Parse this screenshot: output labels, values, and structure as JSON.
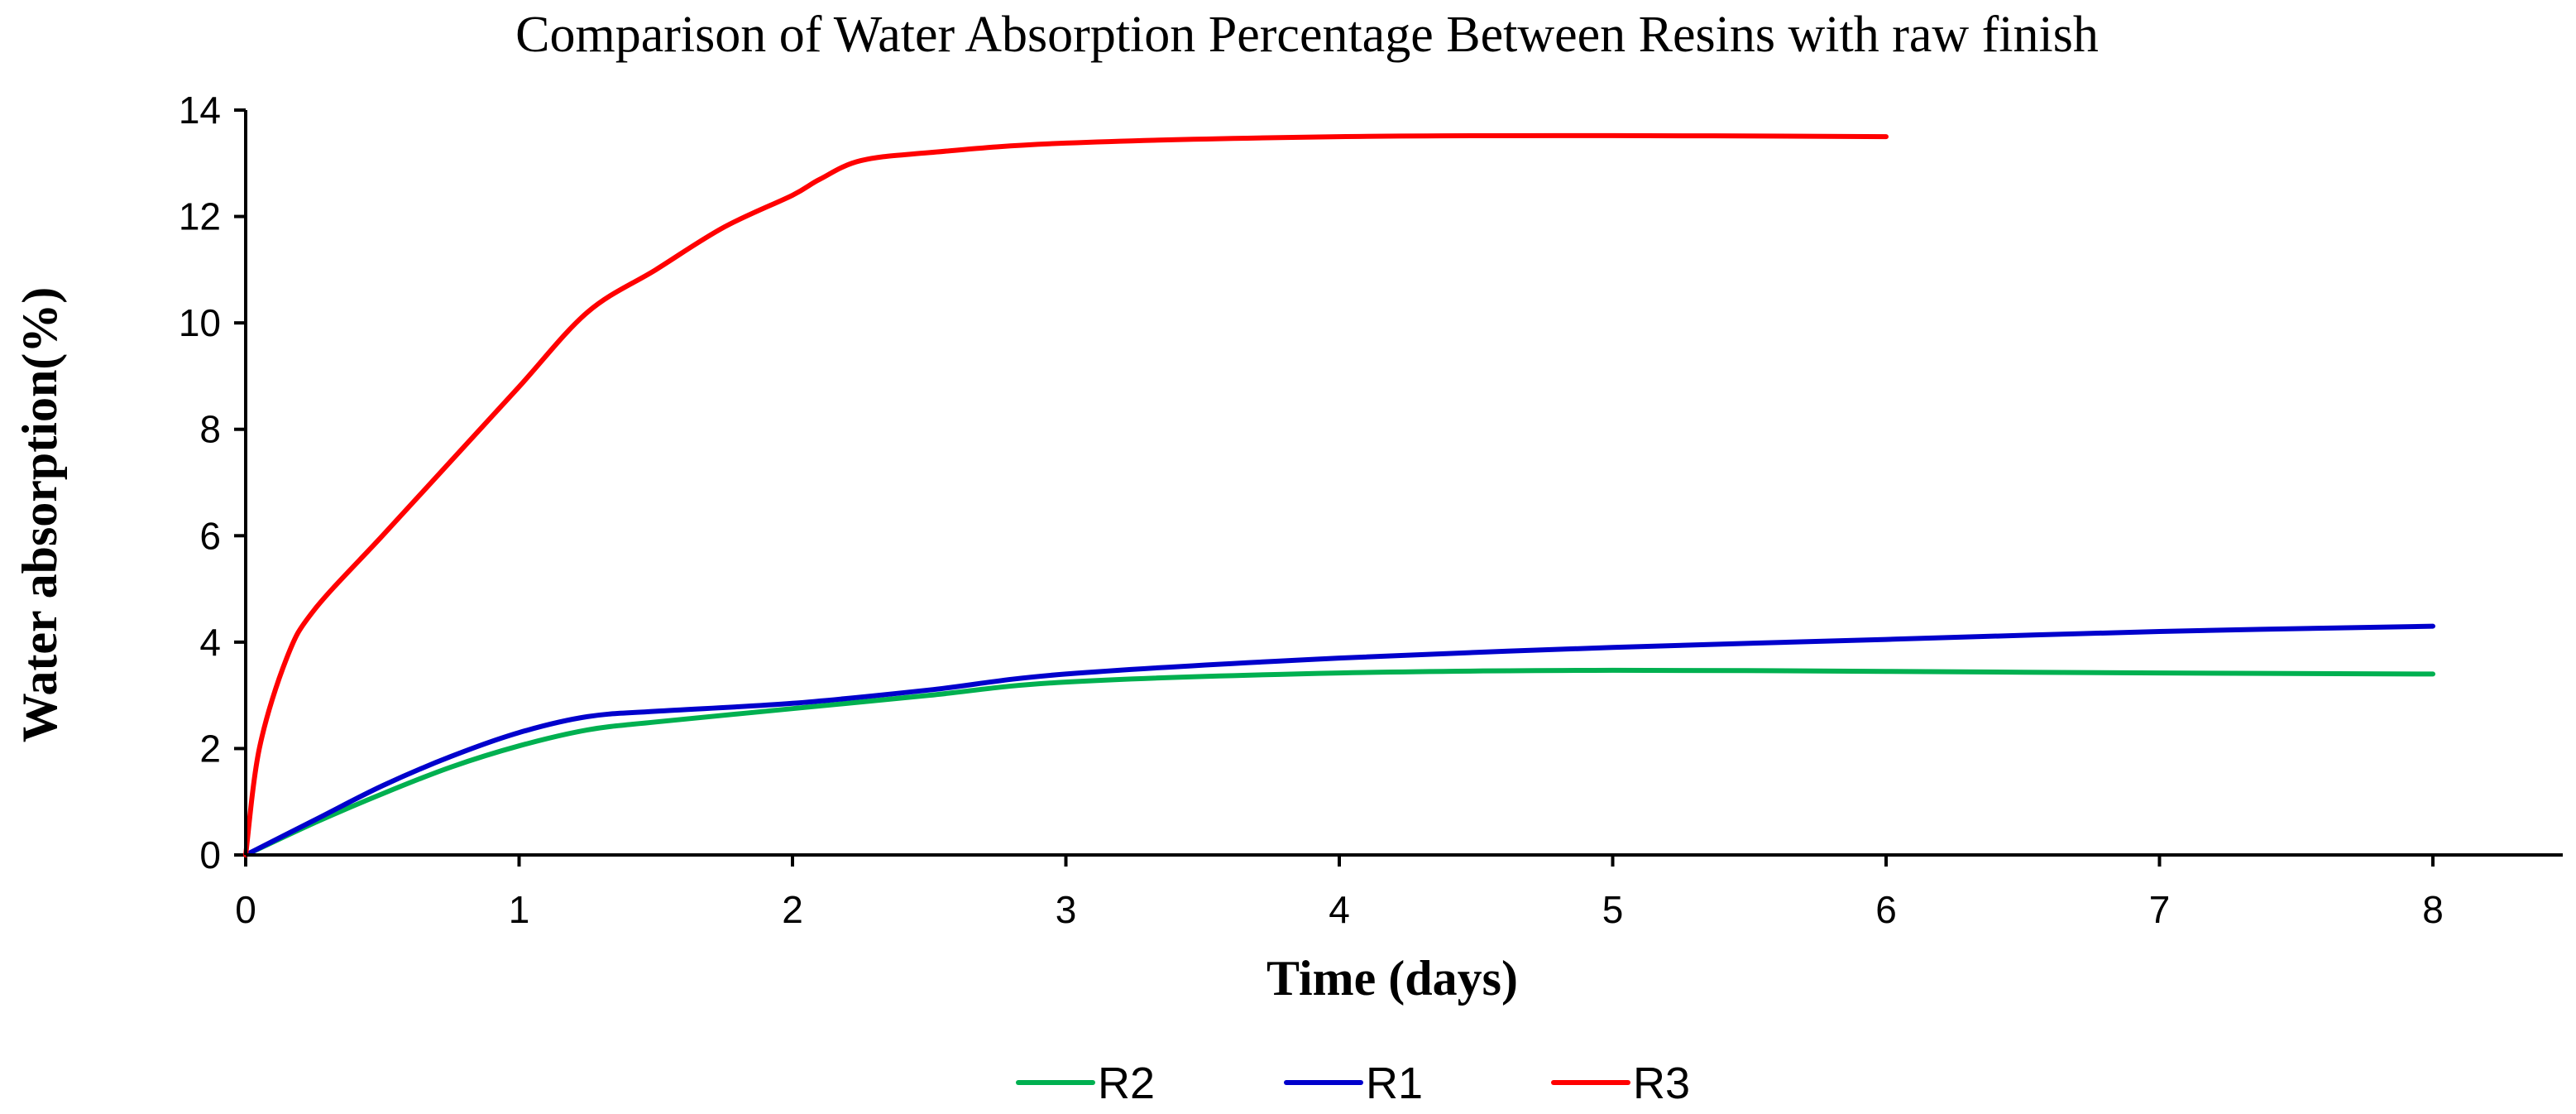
{
  "chart_data": {
    "type": "line",
    "title": "Comparison of Water Absorption Percentage Between Resins with raw finish",
    "xlabel": "Time (days)",
    "ylabel": "Water absorption(%)",
    "xlim": [
      0,
      8.5
    ],
    "ylim": [
      0,
      14
    ],
    "xticks": [
      0,
      1,
      2,
      3,
      4,
      5,
      6,
      7,
      8
    ],
    "yticks": [
      0,
      2,
      4,
      6,
      8,
      10,
      12,
      14
    ],
    "xtick_labels": [
      "0",
      "1",
      "2",
      "3",
      "4",
      "5",
      "6",
      "7",
      "8"
    ],
    "ytick_labels": [
      "0",
      "2",
      "4",
      "6",
      "8",
      "10",
      "12",
      "14"
    ],
    "grid": false,
    "legend_position": "bottom",
    "series": [
      {
        "name": "R2",
        "color": "#00b050",
        "x": [
          0,
          0.25,
          0.5,
          0.75,
          1,
          1.25,
          1.5,
          2,
          2.5,
          3,
          4,
          5,
          6,
          7,
          8
        ],
        "y": [
          0,
          0.6,
          1.15,
          1.65,
          2.05,
          2.35,
          2.5,
          2.75,
          3.0,
          3.25,
          3.42,
          3.47,
          3.45,
          3.42,
          3.4
        ]
      },
      {
        "name": "R1",
        "color": "#0000cc",
        "x": [
          0,
          0.25,
          0.5,
          0.75,
          1,
          1.25,
          1.5,
          2,
          2.5,
          3,
          4,
          5,
          6,
          7,
          8
        ],
        "y": [
          0,
          0.65,
          1.3,
          1.85,
          2.3,
          2.6,
          2.7,
          2.85,
          3.1,
          3.4,
          3.7,
          3.9,
          4.05,
          4.2,
          4.3
        ]
      },
      {
        "name": "R3",
        "color": "#ff0000",
        "x": [
          0,
          0.05,
          0.15,
          0.25,
          0.5,
          0.75,
          1,
          1.25,
          1.5,
          1.75,
          2,
          2.1,
          2.25,
          2.5,
          3,
          4,
          5,
          6
        ],
        "y": [
          0,
          2.0,
          3.7,
          4.6,
          6.0,
          7.4,
          8.8,
          10.2,
          11.0,
          11.8,
          12.4,
          12.7,
          13.05,
          13.2,
          13.38,
          13.5,
          13.52,
          13.5
        ]
      }
    ]
  }
}
